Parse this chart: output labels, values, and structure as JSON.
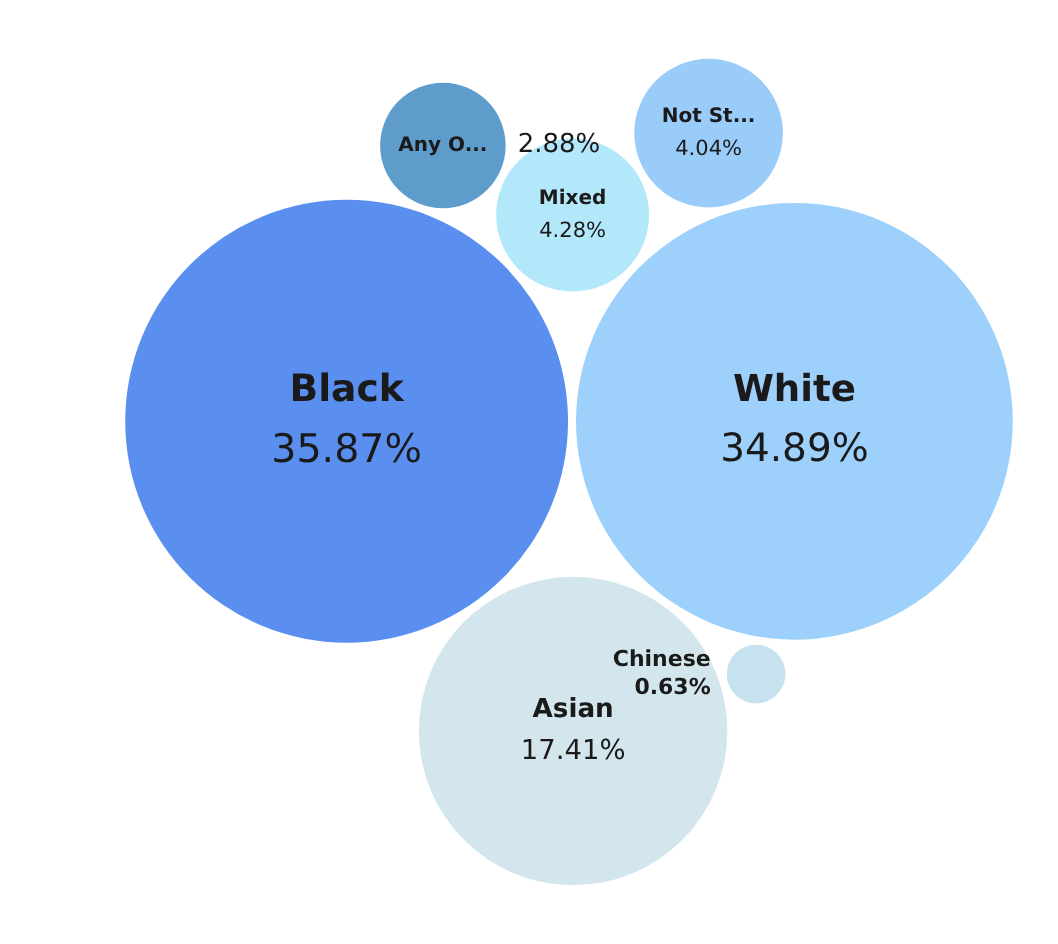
{
  "chart_data": {
    "type": "other",
    "categories": [
      "Black",
      "White",
      "Asian",
      "Mixed",
      "Not St...",
      "Any O...",
      "Chinese"
    ],
    "values": [
      35.87,
      34.89,
      17.41,
      4.28,
      4.04,
      2.88,
      0.63
    ],
    "value_labels": [
      "35.87%",
      "34.89%",
      "17.41%",
      "4.28%",
      "4.04%",
      "2.88%",
      "0.63%"
    ],
    "colors": [
      "#5a8ff0",
      "#9dd0fb",
      "#d3e6ee",
      "#b3e8fb",
      "#99ccf8",
      "#5e9ccc",
      "#c5e2ee"
    ]
  }
}
